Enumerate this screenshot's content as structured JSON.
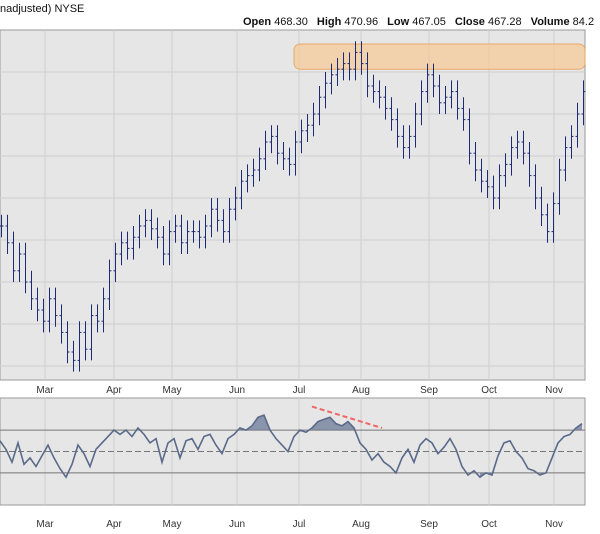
{
  "header": {
    "title_fragment": "nadjusted)",
    "exchange": "NYSE",
    "open_label": "Open",
    "open_value": "468.30",
    "high_label": "High",
    "high_value": "470.96",
    "low_label": "Low",
    "low_value": "467.05",
    "close_label": "Close",
    "close_value": "467.28",
    "volume_label": "Volume",
    "volume_value": "84.2"
  },
  "colors": {
    "panel_bg": "#e6e6e6",
    "grid": "#cfcfcf",
    "bar": "#1c2a78",
    "indicator_line": "#5a6a8a",
    "indicator_fill": "#6b7a98",
    "resistance_band": "#f6c794",
    "divergence_line": "#ee6666"
  },
  "chart_data": [
    {
      "type": "ohlc",
      "x_tick_labels": [
        "Mar",
        "Apr",
        "May",
        "Jun",
        "Jul",
        "Aug",
        "Sep",
        "Oct",
        "Nov"
      ],
      "grid": true,
      "annotation": "horizontal resistance zone near the late-July high",
      "series": [
        {
          "x": 0,
          "y": 430
        },
        {
          "x": 6,
          "y": 424
        },
        {
          "x": 12,
          "y": 414
        },
        {
          "x": 18,
          "y": 420
        },
        {
          "x": 24,
          "y": 410
        },
        {
          "x": 30,
          "y": 404
        },
        {
          "x": 36,
          "y": 400
        },
        {
          "x": 42,
          "y": 396
        },
        {
          "x": 48,
          "y": 404
        },
        {
          "x": 54,
          "y": 398
        },
        {
          "x": 60,
          "y": 392
        },
        {
          "x": 66,
          "y": 385
        },
        {
          "x": 72,
          "y": 382
        },
        {
          "x": 78,
          "y": 392
        },
        {
          "x": 84,
          "y": 386
        },
        {
          "x": 90,
          "y": 398
        },
        {
          "x": 96,
          "y": 396
        },
        {
          "x": 102,
          "y": 404
        },
        {
          "x": 108,
          "y": 414
        },
        {
          "x": 114,
          "y": 420
        },
        {
          "x": 120,
          "y": 424
        },
        {
          "x": 126,
          "y": 422
        },
        {
          "x": 132,
          "y": 426
        },
        {
          "x": 138,
          "y": 430
        },
        {
          "x": 144,
          "y": 432
        },
        {
          "x": 150,
          "y": 429
        },
        {
          "x": 156,
          "y": 426
        },
        {
          "x": 162,
          "y": 420
        },
        {
          "x": 168,
          "y": 428
        },
        {
          "x": 174,
          "y": 430
        },
        {
          "x": 180,
          "y": 424
        },
        {
          "x": 186,
          "y": 428
        },
        {
          "x": 192,
          "y": 428
        },
        {
          "x": 198,
          "y": 426
        },
        {
          "x": 204,
          "y": 430
        },
        {
          "x": 210,
          "y": 436
        },
        {
          "x": 216,
          "y": 432
        },
        {
          "x": 222,
          "y": 428
        },
        {
          "x": 228,
          "y": 436
        },
        {
          "x": 234,
          "y": 440
        },
        {
          "x": 240,
          "y": 446
        },
        {
          "x": 246,
          "y": 448
        },
        {
          "x": 252,
          "y": 450
        },
        {
          "x": 258,
          "y": 454
        },
        {
          "x": 264,
          "y": 460
        },
        {
          "x": 270,
          "y": 462
        },
        {
          "x": 276,
          "y": 456
        },
        {
          "x": 282,
          "y": 454
        },
        {
          "x": 288,
          "y": 452
        },
        {
          "x": 294,
          "y": 460
        },
        {
          "x": 300,
          "y": 464
        },
        {
          "x": 306,
          "y": 466
        },
        {
          "x": 312,
          "y": 470
        },
        {
          "x": 318,
          "y": 476
        },
        {
          "x": 324,
          "y": 481
        },
        {
          "x": 330,
          "y": 484
        },
        {
          "x": 336,
          "y": 486
        },
        {
          "x": 342,
          "y": 488
        },
        {
          "x": 348,
          "y": 486
        },
        {
          "x": 354,
          "y": 492
        },
        {
          "x": 360,
          "y": 488
        },
        {
          "x": 366,
          "y": 480
        },
        {
          "x": 372,
          "y": 478
        },
        {
          "x": 378,
          "y": 476
        },
        {
          "x": 384,
          "y": 472
        },
        {
          "x": 390,
          "y": 468
        },
        {
          "x": 396,
          "y": 462
        },
        {
          "x": 402,
          "y": 458
        },
        {
          "x": 408,
          "y": 462
        },
        {
          "x": 414,
          "y": 470
        },
        {
          "x": 420,
          "y": 478
        },
        {
          "x": 426,
          "y": 484
        },
        {
          "x": 432,
          "y": 480
        },
        {
          "x": 438,
          "y": 474
        },
        {
          "x": 444,
          "y": 476
        },
        {
          "x": 450,
          "y": 478
        },
        {
          "x": 456,
          "y": 472
        },
        {
          "x": 462,
          "y": 468
        },
        {
          "x": 468,
          "y": 456
        },
        {
          "x": 474,
          "y": 450
        },
        {
          "x": 480,
          "y": 446
        },
        {
          "x": 486,
          "y": 444
        },
        {
          "x": 492,
          "y": 440
        },
        {
          "x": 498,
          "y": 448
        },
        {
          "x": 504,
          "y": 452
        },
        {
          "x": 510,
          "y": 458
        },
        {
          "x": 516,
          "y": 460
        },
        {
          "x": 522,
          "y": 456
        },
        {
          "x": 528,
          "y": 448
        },
        {
          "x": 534,
          "y": 440
        },
        {
          "x": 540,
          "y": 434
        },
        {
          "x": 546,
          "y": 428
        },
        {
          "x": 552,
          "y": 438
        },
        {
          "x": 558,
          "y": 450
        },
        {
          "x": 564,
          "y": 458
        },
        {
          "x": 570,
          "y": 462
        },
        {
          "x": 576,
          "y": 470
        },
        {
          "x": 582,
          "y": 478
        }
      ]
    },
    {
      "type": "line",
      "panel": "indicator",
      "x_tick_labels": [
        "Mar",
        "Apr",
        "May",
        "Jun",
        "Jul",
        "Aug",
        "Sep",
        "Oct",
        "Nov"
      ],
      "reference_levels": [
        70,
        50,
        30
      ],
      "ylim": [
        0,
        100
      ],
      "grid": true,
      "annotation": "downward divergence line drawn across July–August peaks",
      "series": [
        {
          "x": 0,
          "y": 60
        },
        {
          "x": 6,
          "y": 52
        },
        {
          "x": 12,
          "y": 40
        },
        {
          "x": 18,
          "y": 58
        },
        {
          "x": 24,
          "y": 38
        },
        {
          "x": 30,
          "y": 44
        },
        {
          "x": 36,
          "y": 36
        },
        {
          "x": 42,
          "y": 46
        },
        {
          "x": 48,
          "y": 56
        },
        {
          "x": 54,
          "y": 44
        },
        {
          "x": 60,
          "y": 34
        },
        {
          "x": 66,
          "y": 26
        },
        {
          "x": 72,
          "y": 38
        },
        {
          "x": 78,
          "y": 56
        },
        {
          "x": 84,
          "y": 48
        },
        {
          "x": 90,
          "y": 36
        },
        {
          "x": 96,
          "y": 52
        },
        {
          "x": 102,
          "y": 58
        },
        {
          "x": 108,
          "y": 64
        },
        {
          "x": 114,
          "y": 70
        },
        {
          "x": 120,
          "y": 66
        },
        {
          "x": 126,
          "y": 70
        },
        {
          "x": 132,
          "y": 64
        },
        {
          "x": 138,
          "y": 72
        },
        {
          "x": 144,
          "y": 66
        },
        {
          "x": 150,
          "y": 58
        },
        {
          "x": 156,
          "y": 62
        },
        {
          "x": 162,
          "y": 40
        },
        {
          "x": 168,
          "y": 58
        },
        {
          "x": 174,
          "y": 62
        },
        {
          "x": 180,
          "y": 44
        },
        {
          "x": 186,
          "y": 60
        },
        {
          "x": 192,
          "y": 62
        },
        {
          "x": 198,
          "y": 52
        },
        {
          "x": 204,
          "y": 64
        },
        {
          "x": 210,
          "y": 66
        },
        {
          "x": 216,
          "y": 56
        },
        {
          "x": 222,
          "y": 48
        },
        {
          "x": 228,
          "y": 62
        },
        {
          "x": 234,
          "y": 66
        },
        {
          "x": 240,
          "y": 72
        },
        {
          "x": 246,
          "y": 70
        },
        {
          "x": 252,
          "y": 74
        },
        {
          "x": 258,
          "y": 82
        },
        {
          "x": 264,
          "y": 84
        },
        {
          "x": 270,
          "y": 70
        },
        {
          "x": 276,
          "y": 62
        },
        {
          "x": 282,
          "y": 56
        },
        {
          "x": 288,
          "y": 50
        },
        {
          "x": 294,
          "y": 64
        },
        {
          "x": 300,
          "y": 70
        },
        {
          "x": 306,
          "y": 68
        },
        {
          "x": 312,
          "y": 72
        },
        {
          "x": 318,
          "y": 78
        },
        {
          "x": 324,
          "y": 80
        },
        {
          "x": 330,
          "y": 82
        },
        {
          "x": 336,
          "y": 76
        },
        {
          "x": 342,
          "y": 74
        },
        {
          "x": 348,
          "y": 78
        },
        {
          "x": 354,
          "y": 72
        },
        {
          "x": 360,
          "y": 58
        },
        {
          "x": 366,
          "y": 52
        },
        {
          "x": 372,
          "y": 42
        },
        {
          "x": 378,
          "y": 48
        },
        {
          "x": 384,
          "y": 40
        },
        {
          "x": 390,
          "y": 36
        },
        {
          "x": 396,
          "y": 30
        },
        {
          "x": 402,
          "y": 44
        },
        {
          "x": 408,
          "y": 52
        },
        {
          "x": 414,
          "y": 40
        },
        {
          "x": 420,
          "y": 56
        },
        {
          "x": 426,
          "y": 62
        },
        {
          "x": 432,
          "y": 58
        },
        {
          "x": 438,
          "y": 48
        },
        {
          "x": 444,
          "y": 54
        },
        {
          "x": 450,
          "y": 62
        },
        {
          "x": 456,
          "y": 52
        },
        {
          "x": 462,
          "y": 36
        },
        {
          "x": 468,
          "y": 28
        },
        {
          "x": 474,
          "y": 32
        },
        {
          "x": 480,
          "y": 26
        },
        {
          "x": 486,
          "y": 30
        },
        {
          "x": 492,
          "y": 28
        },
        {
          "x": 498,
          "y": 46
        },
        {
          "x": 504,
          "y": 58
        },
        {
          "x": 510,
          "y": 60
        },
        {
          "x": 516,
          "y": 50
        },
        {
          "x": 522,
          "y": 44
        },
        {
          "x": 528,
          "y": 34
        },
        {
          "x": 534,
          "y": 32
        },
        {
          "x": 540,
          "y": 28
        },
        {
          "x": 546,
          "y": 30
        },
        {
          "x": 552,
          "y": 44
        },
        {
          "x": 558,
          "y": 58
        },
        {
          "x": 564,
          "y": 64
        },
        {
          "x": 570,
          "y": 66
        },
        {
          "x": 576,
          "y": 72
        },
        {
          "x": 582,
          "y": 76
        }
      ]
    }
  ]
}
